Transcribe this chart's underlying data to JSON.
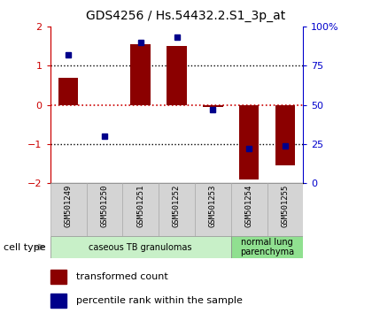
{
  "title": "GDS4256 / Hs.54432.2.S1_3p_at",
  "samples": [
    "GSM501249",
    "GSM501250",
    "GSM501251",
    "GSM501252",
    "GSM501253",
    "GSM501254",
    "GSM501255"
  ],
  "transformed_count": [
    0.7,
    0.0,
    1.55,
    1.5,
    -0.05,
    -1.9,
    -1.55
  ],
  "percentile_rank": [
    82,
    30,
    90,
    93,
    47,
    22,
    24
  ],
  "ylim": [
    -2,
    2
  ],
  "bar_color": "#8B0000",
  "dot_color": "#00008B",
  "background_color": "#ffffff",
  "plot_bg": "#ffffff",
  "groups": [
    {
      "label": "caseous TB granulomas",
      "samples": [
        0,
        1,
        2,
        3,
        4
      ],
      "color": "#c8f0c8"
    },
    {
      "label": "normal lung\nparenchyma",
      "samples": [
        5,
        6
      ],
      "color": "#90e090"
    }
  ],
  "legend_bar_label": "transformed count",
  "legend_dot_label": "percentile rank within the sample",
  "cell_type_label": "cell type",
  "left_axis_color": "#cc0000",
  "right_axis_color": "#0000cc",
  "yticks_left": [
    -2,
    -1,
    0,
    1,
    2
  ],
  "yticks_right": [
    0,
    25,
    50,
    75,
    100
  ],
  "dotted_lines": [
    -1,
    0,
    1
  ],
  "zero_line_color": "#cc0000"
}
